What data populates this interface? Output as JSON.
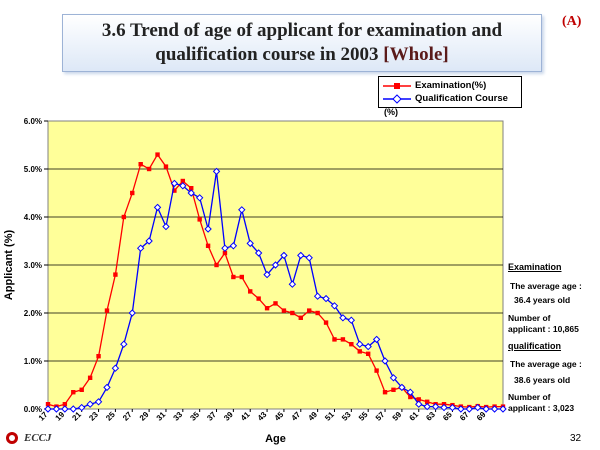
{
  "title": {
    "line1": "3.6  Trend of age of applicant for examination and",
    "line2": "qualification course in 2003",
    "bracket": "[Whole]"
  },
  "corner_label": "(A)",
  "unit_label": "(%)",
  "side_panel": {
    "examination_heading": "Examination",
    "examination_avg_label": "The average age :",
    "examination_avg_value": "36.4 years old",
    "examination_count_label": "Number of",
    "examination_count_value": "applicant : 10,865",
    "qualification_heading": "qualification",
    "qualification_avg_label": "The average age :",
    "qualification_avg_value": "38.6 years old",
    "qualification_count_label": "Number of",
    "qualification_count_value": "applicant : 3,023"
  },
  "footer": {
    "logo_text": "ECCJ",
    "page_number": "32"
  },
  "chart_data": {
    "type": "line",
    "xlabel": "Age",
    "ylabel": "Applicant (%)",
    "ylim": [
      0,
      6
    ],
    "y_ticks": [
      "0.0%",
      "1.0%",
      "2.0%",
      "3.0%",
      "4.0%",
      "5.0%",
      "6.0%"
    ],
    "x_tick_labels": [
      "17",
      "19",
      "21",
      "23",
      "25",
      "27",
      "29",
      "31",
      "33",
      "35",
      "37",
      "39",
      "41",
      "43",
      "45",
      "47",
      "49",
      "51",
      "53",
      "55",
      "57",
      "59",
      "61",
      "63",
      "65",
      "67",
      "69"
    ],
    "x": [
      17,
      18,
      19,
      20,
      21,
      22,
      23,
      24,
      25,
      26,
      27,
      28,
      29,
      30,
      31,
      32,
      33,
      34,
      35,
      36,
      37,
      38,
      39,
      40,
      41,
      42,
      43,
      44,
      45,
      46,
      47,
      48,
      49,
      50,
      51,
      52,
      53,
      54,
      55,
      56,
      57,
      58,
      59,
      60,
      61,
      62,
      63,
      64,
      65,
      66,
      67,
      68,
      69,
      70,
      71
    ],
    "grid": "horizontal",
    "background": "#ffff99",
    "legend_position": "top-right",
    "series": [
      {
        "name": "Examination(%)",
        "color": "#ff0000",
        "marker": "square",
        "values": [
          0.1,
          0.05,
          0.1,
          0.35,
          0.4,
          0.65,
          1.1,
          2.05,
          2.8,
          4.0,
          4.5,
          5.1,
          5.0,
          5.3,
          5.05,
          4.55,
          4.75,
          4.6,
          3.95,
          3.4,
          3.0,
          3.25,
          2.75,
          2.75,
          2.45,
          2.3,
          2.1,
          2.2,
          2.05,
          2.0,
          1.9,
          2.05,
          2.0,
          1.8,
          1.45,
          1.45,
          1.35,
          1.2,
          1.15,
          0.8,
          0.35,
          0.4,
          0.45,
          0.25,
          0.2,
          0.15,
          0.1,
          0.1,
          0.08,
          0.05,
          0.04,
          0.06,
          0.04,
          0.05,
          0.05
        ]
      },
      {
        "name": "Qualification Course",
        "color": "#0000ff",
        "marker": "diamond",
        "values": [
          0.0,
          0.0,
          0.0,
          0.0,
          0.03,
          0.1,
          0.15,
          0.45,
          0.85,
          1.35,
          2.0,
          3.35,
          3.5,
          4.2,
          3.8,
          4.7,
          4.65,
          4.5,
          4.4,
          3.75,
          4.95,
          3.35,
          3.4,
          4.15,
          3.45,
          3.25,
          2.8,
          3.0,
          3.2,
          2.6,
          3.2,
          3.15,
          2.35,
          2.3,
          2.15,
          1.9,
          1.85,
          1.35,
          1.3,
          1.45,
          1.0,
          0.65,
          0.45,
          0.35,
          0.1,
          0.05,
          0.05,
          0.03,
          0.03,
          0.0,
          0.0,
          0.03,
          0.0,
          0.0,
          0.0
        ]
      }
    ]
  }
}
